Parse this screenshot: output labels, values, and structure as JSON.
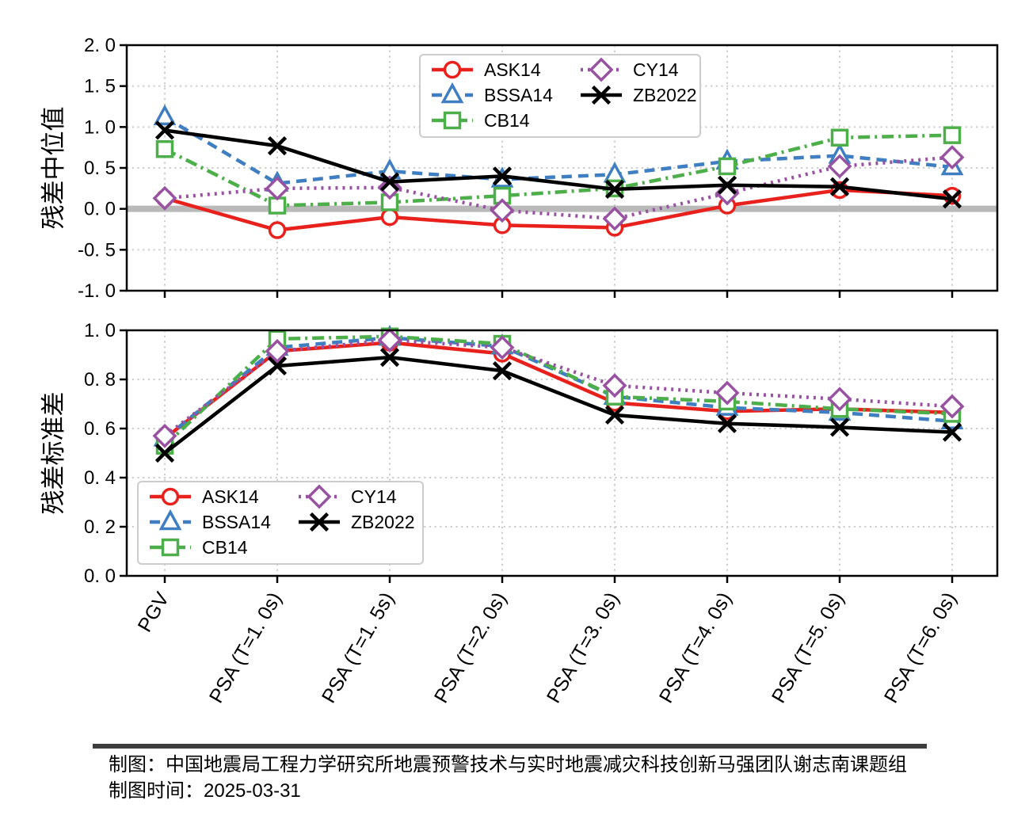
{
  "caption": {
    "line1": "制图：中国地震局工程力学研究所地震预警技术与实时地震减灾科技创新马强团队谢志南课题组",
    "line2": "制图时间：2025-03-31"
  },
  "palette": {
    "ASK14": "#e8211d",
    "BSSA14": "#3f7fc1",
    "CB14": "#4daf4a",
    "CY14": "#9952a1",
    "ZB2022": "#000000",
    "grid": "#cccccc",
    "zero_band": "#b9b9b9",
    "legend_border": "#cccccc",
    "caption_rule": "#3d3d3d"
  },
  "chart_data": [
    {
      "type": "line",
      "title": "",
      "xlabel": "",
      "ylabel": "残差中位值",
      "ylim": [
        -1.0,
        2.0
      ],
      "yticks": [
        2.0,
        1.5,
        1.0,
        0.5,
        0.0,
        -0.5,
        -1.0
      ],
      "ytick_labels": [
        "2. 0",
        "1. 5",
        "1. 0",
        "0. 5",
        "0. 0",
        "-0. 5",
        "-1. 0"
      ],
      "grid": true,
      "zero_band": true,
      "legend_position": "upper center",
      "categories": [
        "PGV",
        "PSA (T=1. 0s)",
        "PSA (T=1. 5s)",
        "PSA (T=2. 0s)",
        "PSA (T=3. 0s)",
        "PSA (T=4. 0s)",
        "PSA (T=5. 0s)",
        "PSA (T=6. 0s)"
      ],
      "show_x_tick_labels": false,
      "series": [
        {
          "name": "ASK14",
          "color": "#e8211d",
          "line": "solid",
          "marker": "circle",
          "values": [
            0.13,
            -0.26,
            -0.1,
            -0.2,
            -0.23,
            0.04,
            0.23,
            0.16
          ]
        },
        {
          "name": "BSSA14",
          "color": "#3f7fc1",
          "line": "dashed",
          "marker": "triangle",
          "values": [
            1.12,
            0.31,
            0.46,
            0.36,
            0.42,
            0.58,
            0.65,
            0.51
          ]
        },
        {
          "name": "CB14",
          "color": "#4daf4a",
          "line": "dashdot",
          "marker": "square",
          "values": [
            0.73,
            0.04,
            0.08,
            0.16,
            0.25,
            0.52,
            0.87,
            0.9
          ]
        },
        {
          "name": "CY14",
          "color": "#9952a1",
          "line": "dotted",
          "marker": "diamond",
          "values": [
            0.13,
            0.25,
            0.26,
            -0.02,
            -0.12,
            0.19,
            0.52,
            0.63
          ]
        },
        {
          "name": "ZB2022",
          "color": "#000000",
          "line": "solid",
          "marker": "x",
          "values": [
            0.96,
            0.77,
            0.33,
            0.4,
            0.24,
            0.29,
            0.27,
            0.12
          ]
        }
      ]
    },
    {
      "type": "line",
      "title": "",
      "xlabel": "",
      "ylabel": "残差标准差",
      "ylim": [
        0.0,
        1.0
      ],
      "yticks": [
        1.0,
        0.8,
        0.6,
        0.4,
        0.2,
        0.0
      ],
      "ytick_labels": [
        "1. 0",
        "0. 8",
        "0. 6",
        "0. 4",
        "0. 2",
        "0. 0"
      ],
      "grid": true,
      "zero_band": false,
      "legend_position": "lower left",
      "categories": [
        "PGV",
        "PSA (T=1. 0s)",
        "PSA (T=1. 5s)",
        "PSA (T=2. 0s)",
        "PSA (T=3. 0s)",
        "PSA (T=4. 0s)",
        "PSA (T=5. 0s)",
        "PSA (T=6. 0s)"
      ],
      "show_x_tick_labels": true,
      "series": [
        {
          "name": "ASK14",
          "color": "#e8211d",
          "line": "solid",
          "marker": "circle",
          "values": [
            0.56,
            0.915,
            0.95,
            0.905,
            0.705,
            0.67,
            0.68,
            0.665
          ]
        },
        {
          "name": "BSSA14",
          "color": "#3f7fc1",
          "line": "dashed",
          "marker": "triangle",
          "values": [
            0.56,
            0.93,
            0.97,
            0.935,
            0.73,
            0.685,
            0.665,
            0.63
          ]
        },
        {
          "name": "CB14",
          "color": "#4daf4a",
          "line": "dashdot",
          "marker": "square",
          "values": [
            0.53,
            0.965,
            0.975,
            0.945,
            0.73,
            0.71,
            0.68,
            0.66
          ]
        },
        {
          "name": "CY14",
          "color": "#9952a1",
          "line": "dotted",
          "marker": "diamond",
          "values": [
            0.57,
            0.915,
            0.96,
            0.93,
            0.775,
            0.745,
            0.72,
            0.69
          ]
        },
        {
          "name": "ZB2022",
          "color": "#000000",
          "line": "solid",
          "marker": "x",
          "values": [
            0.5,
            0.855,
            0.89,
            0.835,
            0.655,
            0.62,
            0.605,
            0.585
          ]
        }
      ]
    }
  ]
}
